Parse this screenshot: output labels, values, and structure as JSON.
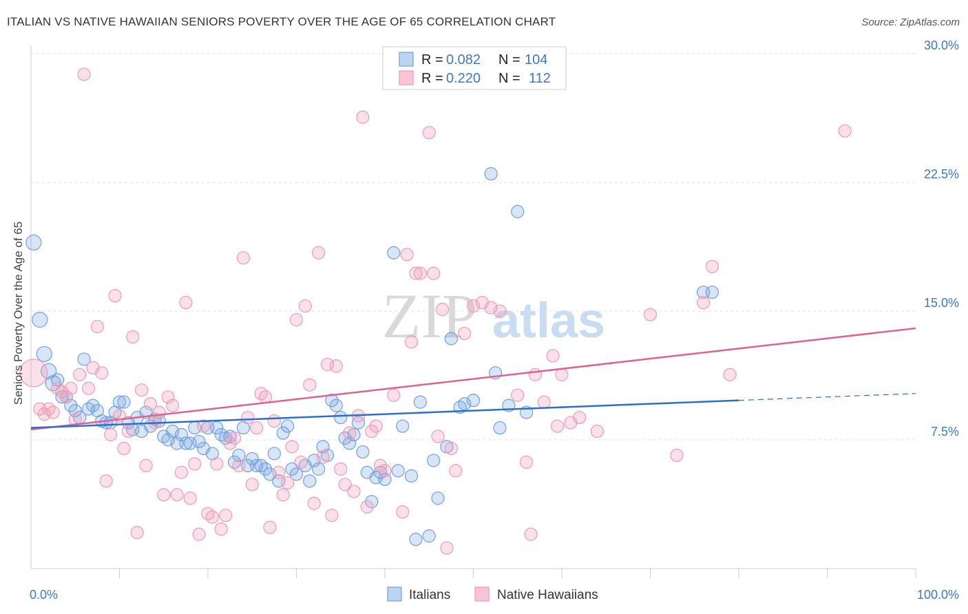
{
  "title": "ITALIAN VS NATIVE HAWAIIAN SENIORS POVERTY OVER THE AGE OF 65 CORRELATION CHART",
  "source": "Source: ZipAtlas.com",
  "watermark": {
    "zip": "ZIP",
    "atlas": "atlas"
  },
  "colors": {
    "italians": "#6fa0e0",
    "hawaiians": "#f09ab5",
    "blue_line": "#2a6fcc",
    "pink_line": "#e06090"
  },
  "chart_data": {
    "type": "scatter",
    "title": "ITALIAN VS NATIVE HAWAIIAN SENIORS POVERTY OVER THE AGE OF 65 CORRELATION CHART",
    "xlabel": "",
    "ylabel": "Seniors Poverty Over the Age of 65",
    "xlim": [
      0,
      100
    ],
    "ylim": [
      0,
      30
    ],
    "x_tick_labels": [
      "0.0%",
      "100.0%"
    ],
    "y_ticks": [
      7.5,
      15.0,
      22.5,
      30.0
    ],
    "y_tick_labels": [
      "7.5%",
      "15.0%",
      "22.5%",
      "30.0%"
    ],
    "grid": true,
    "legend": {
      "placement": "top-center",
      "entries": [
        {
          "name": "Italians",
          "r_label": "R =",
          "r": "0.082",
          "n_label": "N =",
          "n": "104"
        },
        {
          "name": "Native Hawaiians",
          "r_label": "R =",
          "r": "0.220",
          "n_label": "N =",
          "n": "112"
        }
      ]
    },
    "series": [
      {
        "name": "Italians",
        "trend": {
          "x": [
            0,
            80
          ],
          "y": [
            8.2,
            9.8
          ],
          "dashed_to": [
            100,
            10.2
          ]
        },
        "points": [
          [
            0.3,
            19.0
          ],
          [
            1,
            14.5
          ],
          [
            1.5,
            12.5
          ],
          [
            2,
            11.5
          ],
          [
            2.5,
            10.8
          ],
          [
            3,
            11.0
          ],
          [
            3.5,
            10.0
          ],
          [
            4,
            10.0
          ],
          [
            4.5,
            9.5
          ],
          [
            5,
            9.2
          ],
          [
            5.5,
            8.8
          ],
          [
            6,
            12.2
          ],
          [
            6.5,
            9.3
          ],
          [
            7,
            9.5
          ],
          [
            7.5,
            9.2
          ],
          [
            8,
            8.6
          ],
          [
            8.5,
            8.5
          ],
          [
            9,
            8.5
          ],
          [
            9.5,
            9.1
          ],
          [
            10,
            9.7
          ],
          [
            10.5,
            9.7
          ],
          [
            11,
            8.5
          ],
          [
            11.5,
            8.1
          ],
          [
            12,
            8.8
          ],
          [
            12.5,
            8.0
          ],
          [
            13,
            9.1
          ],
          [
            13.5,
            8.3
          ],
          [
            14,
            8.7
          ],
          [
            14.5,
            8.6
          ],
          [
            15,
            7.7
          ],
          [
            15.5,
            7.5
          ],
          [
            16,
            8.0
          ],
          [
            16.5,
            7.3
          ],
          [
            17,
            7.8
          ],
          [
            17.5,
            7.3
          ],
          [
            18,
            7.3
          ],
          [
            18.5,
            8.2
          ],
          [
            19,
            7.4
          ],
          [
            19.5,
            7.0
          ],
          [
            20,
            8.2
          ],
          [
            20.5,
            6.7
          ],
          [
            21,
            8.2
          ],
          [
            21.5,
            7.8
          ],
          [
            22,
            7.6
          ],
          [
            22.5,
            7.7
          ],
          [
            23,
            6.2
          ],
          [
            23.5,
            6.6
          ],
          [
            24,
            8.2
          ],
          [
            24.5,
            6.0
          ],
          [
            25,
            6.4
          ],
          [
            25.5,
            6.0
          ],
          [
            26,
            6.0
          ],
          [
            26.5,
            5.8
          ],
          [
            27,
            5.5
          ],
          [
            27.5,
            6.7
          ],
          [
            28,
            5.1
          ],
          [
            28.5,
            7.9
          ],
          [
            29,
            8.3
          ],
          [
            29.5,
            5.8
          ],
          [
            30,
            5.5
          ],
          [
            31,
            6.0
          ],
          [
            31.5,
            5.1
          ],
          [
            32,
            6.3
          ],
          [
            32.5,
            5.8
          ],
          [
            33,
            7.1
          ],
          [
            33.5,
            6.6
          ],
          [
            34,
            9.8
          ],
          [
            34.5,
            9.5
          ],
          [
            35,
            8.8
          ],
          [
            35.5,
            7.6
          ],
          [
            36,
            7.3
          ],
          [
            36.5,
            7.8
          ],
          [
            37,
            8.5
          ],
          [
            37.5,
            6.8
          ],
          [
            38,
            5.6
          ],
          [
            38.5,
            3.9
          ],
          [
            39,
            5.3
          ],
          [
            39.5,
            5.6
          ],
          [
            40,
            5.2
          ],
          [
            41,
            18.4
          ],
          [
            41.5,
            5.7
          ],
          [
            42,
            8.3
          ],
          [
            43,
            5.4
          ],
          [
            43.5,
            1.7
          ],
          [
            44,
            9.7
          ],
          [
            45,
            1.9
          ],
          [
            45.5,
            6.3
          ],
          [
            46,
            4.1
          ],
          [
            47,
            7.1
          ],
          [
            47.5,
            13.4
          ],
          [
            48.5,
            9.4
          ],
          [
            49,
            9.6
          ],
          [
            50,
            9.8
          ],
          [
            52,
            23.0
          ],
          [
            52.5,
            11.4
          ],
          [
            53,
            8.2
          ],
          [
            54,
            9.5
          ],
          [
            55,
            20.8
          ],
          [
            56,
            9.1
          ],
          [
            76,
            16.1
          ],
          [
            77,
            16.1
          ]
        ]
      },
      {
        "name": "Native Hawaiians",
        "trend": {
          "x": [
            0,
            100
          ],
          "y": [
            8.1,
            14.0
          ]
        },
        "points": [
          [
            0.3,
            11.4
          ],
          [
            1,
            9.3
          ],
          [
            1.5,
            9.0
          ],
          [
            2,
            9.3
          ],
          [
            2.5,
            9.1
          ],
          [
            3,
            10.5
          ],
          [
            3.5,
            10.3
          ],
          [
            4,
            10.0
          ],
          [
            4.5,
            10.5
          ],
          [
            5,
            8.7
          ],
          [
            5.5,
            11.3
          ],
          [
            6,
            28.8
          ],
          [
            6.5,
            10.5
          ],
          [
            7,
            11.7
          ],
          [
            7.5,
            14.1
          ],
          [
            8,
            11.4
          ],
          [
            8.5,
            5.1
          ],
          [
            9,
            7.8
          ],
          [
            9.5,
            15.9
          ],
          [
            10,
            8.9
          ],
          [
            10.5,
            7.0
          ],
          [
            11,
            8.0
          ],
          [
            11.5,
            13.5
          ],
          [
            12,
            2.1
          ],
          [
            12.5,
            10.4
          ],
          [
            13,
            6.0
          ],
          [
            13.5,
            9.6
          ],
          [
            14,
            8.5
          ],
          [
            14.5,
            9.1
          ],
          [
            15,
            4.3
          ],
          [
            15.5,
            10.0
          ],
          [
            16,
            9.5
          ],
          [
            16.5,
            4.3
          ],
          [
            17,
            5.6
          ],
          [
            17.5,
            15.5
          ],
          [
            18,
            4.1
          ],
          [
            18.5,
            6.1
          ],
          [
            19,
            2.0
          ],
          [
            19.5,
            8.3
          ],
          [
            20,
            3.2
          ],
          [
            20.5,
            3.0
          ],
          [
            21,
            6.1
          ],
          [
            21.5,
            2.3
          ],
          [
            22,
            3.1
          ],
          [
            22.5,
            7.3
          ],
          [
            23,
            7.6
          ],
          [
            23.5,
            6.0
          ],
          [
            24,
            18.1
          ],
          [
            24.5,
            8.8
          ],
          [
            25,
            4.9
          ],
          [
            25.5,
            8.2
          ],
          [
            26,
            10.2
          ],
          [
            26.5,
            10.0
          ],
          [
            27,
            2.4
          ],
          [
            27.5,
            8.6
          ],
          [
            28,
            5.6
          ],
          [
            28.5,
            4.3
          ],
          [
            29,
            5.0
          ],
          [
            29.5,
            7.1
          ],
          [
            30,
            14.5
          ],
          [
            30.5,
            6.2
          ],
          [
            31,
            15.3
          ],
          [
            31.5,
            10.7
          ],
          [
            32,
            3.8
          ],
          [
            32.5,
            18.4
          ],
          [
            33,
            6.5
          ],
          [
            33.5,
            11.9
          ],
          [
            34,
            3.1
          ],
          [
            34.5,
            11.8
          ],
          [
            35,
            5.8
          ],
          [
            35.5,
            4.9
          ],
          [
            36,
            7.9
          ],
          [
            36.5,
            4.5
          ],
          [
            37,
            8.9
          ],
          [
            37.5,
            26.3
          ],
          [
            38,
            3.6
          ],
          [
            38.5,
            8.0
          ],
          [
            39,
            8.3
          ],
          [
            39.5,
            6.0
          ],
          [
            40,
            5.7
          ],
          [
            41,
            10.1
          ],
          [
            42,
            3.3
          ],
          [
            42.5,
            18.3
          ],
          [
            43,
            13.2
          ],
          [
            43.5,
            17.2
          ],
          [
            44,
            17.2
          ],
          [
            45,
            25.4
          ],
          [
            45.5,
            17.2
          ],
          [
            46,
            7.7
          ],
          [
            46.5,
            15.1
          ],
          [
            47,
            1.2
          ],
          [
            47.5,
            7.0
          ],
          [
            48,
            5.7
          ],
          [
            49,
            13.7
          ],
          [
            50,
            15.3
          ],
          [
            51,
            15.5
          ],
          [
            52,
            15.2
          ],
          [
            53,
            15.0
          ],
          [
            55,
            10.1
          ],
          [
            56,
            6.2
          ],
          [
            56.5,
            2.0
          ],
          [
            57,
            11.3
          ],
          [
            58,
            9.7
          ],
          [
            59,
            12.4
          ],
          [
            59.5,
            8.3
          ],
          [
            60,
            11.3
          ],
          [
            61,
            8.5
          ],
          [
            62,
            8.8
          ],
          [
            64,
            8.0
          ],
          [
            70,
            14.8
          ],
          [
            73,
            6.6
          ],
          [
            76,
            15.5
          ],
          [
            77,
            17.6
          ],
          [
            79,
            11.3
          ],
          [
            92,
            25.5
          ]
        ]
      }
    ]
  },
  "bottom_legend": [
    {
      "label": "Italians"
    },
    {
      "label": "Native Hawaiians"
    }
  ]
}
